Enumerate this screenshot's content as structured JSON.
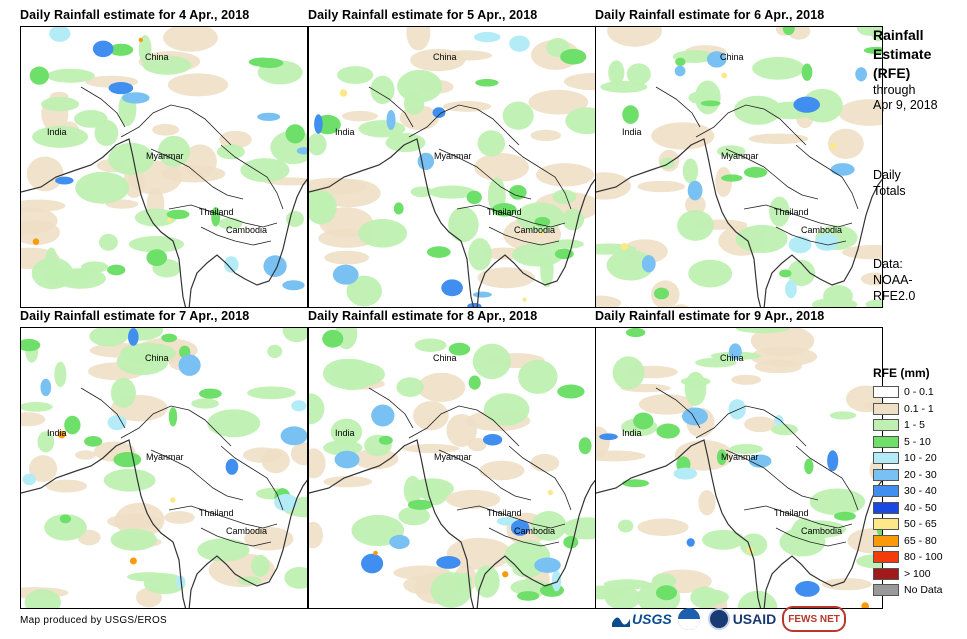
{
  "panels": [
    {
      "title": "Daily Rainfall estimate for 4 Apr., 2018"
    },
    {
      "title": "Daily Rainfall estimate for 5 Apr., 2018"
    },
    {
      "title": "Daily Rainfall estimate for 6 Apr., 2018"
    },
    {
      "title": "Daily Rainfall estimate for 7 Apr., 2018"
    },
    {
      "title": "Daily Rainfall estimate for 8 Apr., 2018"
    },
    {
      "title": "Daily Rainfall estimate for 9 Apr., 2018"
    }
  ],
  "places": {
    "china": "China",
    "india": "India",
    "myanmar": "Myanmar",
    "thailand": "Thailand",
    "cambodia": "Cambodia"
  },
  "side": {
    "title_line1": "Rainfall",
    "title_line2": "Estimate",
    "title_line3": "(RFE)",
    "through": "through",
    "through_date": "Apr 9, 2018",
    "totals_line1": "Daily",
    "totals_line2": "Totals",
    "data_line1": "Data:",
    "data_line2": "NOAA-",
    "data_line3": "RFE2.0"
  },
  "legend": {
    "title": "RFE (mm)",
    "items": [
      {
        "label": "0 - 0.1",
        "color": "#ffffff"
      },
      {
        "label": "0.1 - 1",
        "color": "#eedfc5"
      },
      {
        "label": "1 - 5",
        "color": "#bff0b2"
      },
      {
        "label": "5 - 10",
        "color": "#6ee06a"
      },
      {
        "label": "10 - 20",
        "color": "#b3ecf7"
      },
      {
        "label": "20 - 30",
        "color": "#78c1f2"
      },
      {
        "label": "30 - 40",
        "color": "#3f8ef0"
      },
      {
        "label": "40 - 50",
        "color": "#1a48e2"
      },
      {
        "label": "50 - 65",
        "color": "#fde889"
      },
      {
        "label": "65 - 80",
        "color": "#f99a0a"
      },
      {
        "label": "80 - 100",
        "color": "#f43b09"
      },
      {
        "label": "> 100",
        "color": "#a11a1a"
      },
      {
        "label": "No Data",
        "color": "#999999"
      }
    ]
  },
  "credit": "Map produced by USGS/EROS",
  "logos": {
    "usgs": "USGS",
    "usaid": "USAID",
    "fewsnet": "FEWS NET"
  }
}
